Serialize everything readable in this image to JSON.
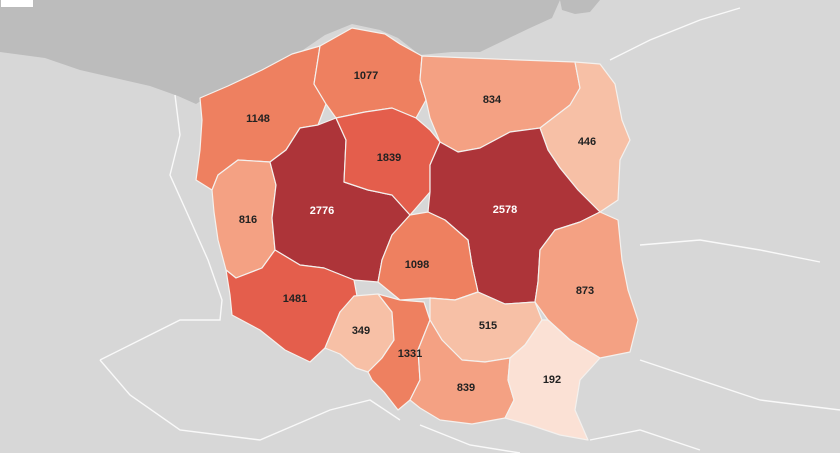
{
  "map": {
    "colors": {
      "land": "#d7d7d7",
      "sea": "#bcbcbc",
      "land_border": "#ffffff",
      "region_border": "#f4f1ee",
      "scale": [
        "#fbe1d5",
        "#f7c0a6",
        "#f4a183",
        "#ee8060",
        "#e45e4c",
        "#ad3439"
      ],
      "label_dark": "#222222",
      "label_light": "#ffffff"
    },
    "regions": [
      {
        "id": "zachodniopomorskie",
        "value": "1148",
        "level": 3
      },
      {
        "id": "pomorskie",
        "value": "1077",
        "level": 3
      },
      {
        "id": "warminsko-mazurskie",
        "value": "834",
        "level": 2
      },
      {
        "id": "podlaskie",
        "value": "446",
        "level": 1
      },
      {
        "id": "lubuskie",
        "value": "816",
        "level": 2
      },
      {
        "id": "wielkopolskie",
        "value": "2776",
        "level": 5
      },
      {
        "id": "kujawsko-pomorskie",
        "value": "1839",
        "level": 4
      },
      {
        "id": "mazowieckie",
        "value": "2578",
        "level": 5
      },
      {
        "id": "lodzkie",
        "value": "1098",
        "level": 3
      },
      {
        "id": "lubelskie",
        "value": "873",
        "level": 2
      },
      {
        "id": "dolnoslaskie",
        "value": "1481",
        "level": 4
      },
      {
        "id": "opolskie",
        "value": "349",
        "level": 1
      },
      {
        "id": "slaskie",
        "value": "1331",
        "level": 3
      },
      {
        "id": "swietokrzyskie",
        "value": "515",
        "level": 1
      },
      {
        "id": "malopolskie",
        "value": "839",
        "level": 2
      },
      {
        "id": "podkarpackie",
        "value": "192",
        "level": 0
      }
    ]
  }
}
